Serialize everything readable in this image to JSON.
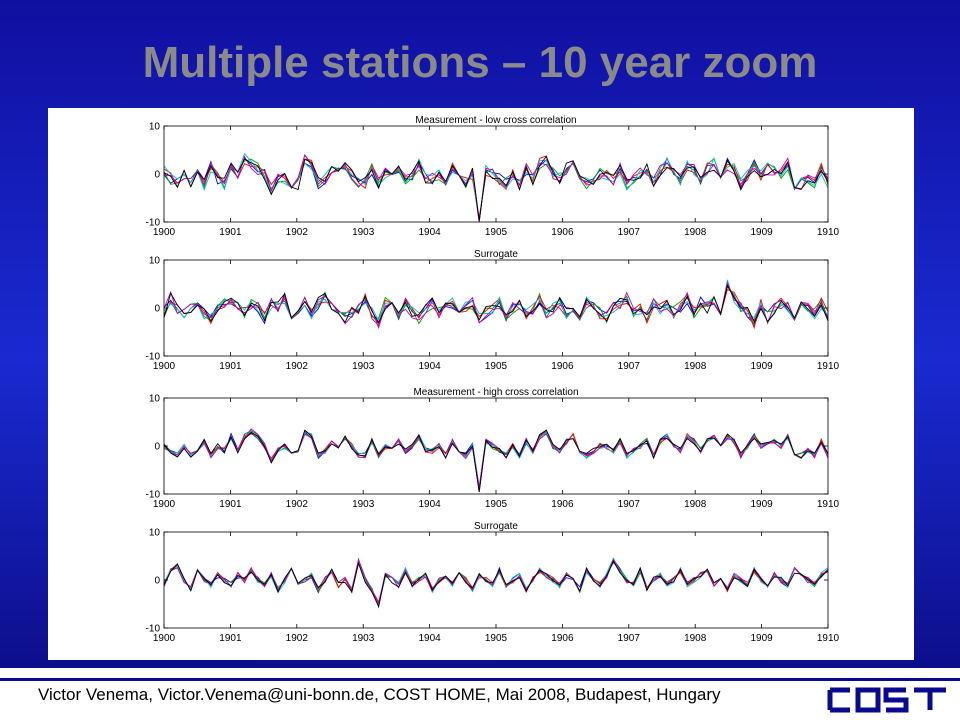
{
  "slide": {
    "title": "Multiple stations – 10 year zoom",
    "footer": "Victor Venema, Victor.Venema@uni-bonn.de, COST HOME, Mai 2008, Budapest, Hungary",
    "logo_text": "cost",
    "logo_color": "#0a0a90"
  },
  "chart_data": [
    {
      "type": "line",
      "title": "Measurement - low cross correlation",
      "xlim": [
        1900,
        1910
      ],
      "ylim": [
        -10,
        10
      ],
      "xticks": [
        "1900",
        "1901",
        "1902",
        "1903",
        "1904",
        "1905",
        "1906",
        "1907",
        "1908",
        "1909",
        "1910"
      ],
      "yticks": [
        "10",
        "0",
        "-10"
      ],
      "series_colors": [
        "#0000ff",
        "#00a000",
        "#ff0000",
        "#00c0c0",
        "#c000c0",
        "#000000"
      ],
      "base": [
        0.5,
        -1,
        -2,
        0,
        -1.5,
        1,
        -2,
        1.5,
        -1,
        -2,
        2,
        0,
        3,
        2,
        1,
        0,
        -3,
        -1,
        -1,
        -2,
        -2,
        3,
        2,
        -2,
        -1,
        1,
        0,
        2,
        0,
        -2,
        -2,
        1,
        -2,
        0,
        -1,
        1,
        -1,
        0,
        2,
        -1,
        -1,
        0,
        -2,
        1,
        -1,
        -2,
        0,
        -10,
        1,
        0,
        -1,
        -2,
        0,
        -2,
        1,
        -1,
        2,
        3,
        0,
        -1,
        1,
        2,
        -1,
        -2,
        -1,
        0,
        0,
        -1,
        1,
        -2,
        -1,
        0,
        1,
        -2,
        1,
        2,
        0,
        -1,
        2,
        1,
        -1,
        1,
        2,
        0,
        2,
        1,
        -2,
        0,
        2,
        0,
        1,
        1,
        0,
        2,
        -2,
        -2,
        -1,
        -2,
        1,
        -2
      ]
    },
    {
      "type": "line",
      "title": "Surrogate",
      "xlim": [
        1900,
        1910
      ],
      "ylim": [
        -10,
        10
      ],
      "xticks": [
        "1900",
        "1901",
        "1902",
        "1903",
        "1904",
        "1905",
        "1906",
        "1907",
        "1908",
        "1909",
        "1910"
      ],
      "yticks": [
        "10",
        "0",
        "-10"
      ],
      "series_colors": [
        "#0000ff",
        "#00a000",
        "#ff0000",
        "#00c0c0",
        "#c000c0",
        "#000000"
      ],
      "base": [
        -1,
        2,
        0,
        -1,
        0,
        1,
        -1,
        -2,
        0,
        1,
        2,
        0,
        -1,
        1,
        0,
        -2,
        1,
        0,
        2,
        -1,
        0,
        1,
        -1,
        1,
        2,
        0,
        -1,
        -2,
        -1,
        0,
        2,
        -1,
        -3,
        1,
        0,
        -2,
        1,
        -1,
        -2,
        0,
        1,
        -1,
        0,
        1,
        -1,
        0,
        1,
        -2,
        -1,
        0,
        1,
        -2,
        0,
        1,
        -1,
        0,
        2,
        -1,
        0,
        1,
        -1,
        0,
        -2,
        1,
        0,
        -1,
        -2,
        0,
        1,
        2,
        -1,
        0,
        -2,
        1,
        0,
        1,
        -1,
        0,
        2,
        -1,
        1,
        0,
        2,
        -1,
        5,
        2,
        0,
        -1,
        -3,
        1,
        -2,
        0,
        1,
        0,
        -2,
        1,
        0,
        -1,
        1,
        -2
      ]
    },
    {
      "type": "line",
      "title": "Measurement - high cross correlation",
      "xlim": [
        1900,
        1910
      ],
      "ylim": [
        -10,
        10
      ],
      "xticks": [
        "1900",
        "1901",
        "1902",
        "1903",
        "1904",
        "1905",
        "1906",
        "1907",
        "1908",
        "1909",
        "1910"
      ],
      "yticks": [
        "10",
        "0",
        "-10"
      ],
      "series_colors": [
        "#0000ff",
        "#00a000",
        "#ff0000",
        "#00c0c0",
        "#c000c0",
        "#000000"
      ],
      "base": [
        0,
        -1,
        -2,
        0,
        -2,
        -1,
        1,
        -2,
        0,
        -1,
        2,
        -1,
        2,
        3,
        2,
        0,
        -3,
        -1,
        0,
        -2,
        -1,
        3,
        2,
        -2,
        -1,
        1,
        0,
        2,
        0,
        -2,
        -2,
        1,
        -2,
        0,
        -1,
        1,
        -1,
        0,
        2,
        -1,
        -1,
        0,
        -2,
        1,
        -1,
        -2,
        0,
        -9,
        1,
        0,
        -1,
        -2,
        0,
        -2,
        1,
        -1,
        2,
        3,
        0,
        -1,
        1,
        2,
        -1,
        -2,
        -1,
        0,
        0,
        -1,
        1,
        -2,
        -1,
        0,
        1,
        -2,
        1,
        2,
        0,
        -1,
        2,
        1,
        -1,
        1,
        2,
        0,
        2,
        1,
        -2,
        0,
        2,
        0,
        1,
        1,
        0,
        2,
        -2,
        -2,
        -1,
        -2,
        1,
        -2
      ]
    },
    {
      "type": "line",
      "title": "Surrogate",
      "xlim": [
        1900,
        1910
      ],
      "ylim": [
        -10,
        10
      ],
      "xticks": [
        "1900",
        "1901",
        "1902",
        "1903",
        "1904",
        "1905",
        "1906",
        "1907",
        "1908",
        "1909",
        "1910"
      ],
      "yticks": [
        "10",
        "0",
        "-10"
      ],
      "series_colors": [
        "#0000ff",
        "#00a000",
        "#ff0000",
        "#00c0c0",
        "#c000c0",
        "#000000"
      ],
      "base": [
        -1,
        2,
        3,
        0,
        -2,
        2,
        0,
        -1,
        1,
        0,
        -1,
        1,
        0,
        2,
        0,
        -1,
        1,
        -2,
        0,
        2,
        -1,
        0,
        1,
        -2,
        0,
        2,
        -1,
        0,
        -2,
        4,
        0,
        -2,
        -5,
        1,
        0,
        -1,
        2,
        -1,
        0,
        1,
        -2,
        0,
        1,
        -1,
        2,
        0,
        -2,
        1,
        0,
        -1,
        2,
        -1,
        0,
        1,
        -2,
        0,
        2,
        1,
        0,
        -1,
        1,
        0,
        -2,
        2,
        0,
        -1,
        1,
        4,
        2,
        0,
        -1,
        2,
        -2,
        0,
        1,
        -1,
        0,
        2,
        -1,
        0,
        1,
        2,
        -1,
        0,
        -2,
        1,
        0,
        -1,
        2,
        0,
        -1,
        1,
        0,
        -1,
        2,
        1,
        0,
        -1,
        1,
        2
      ]
    }
  ]
}
